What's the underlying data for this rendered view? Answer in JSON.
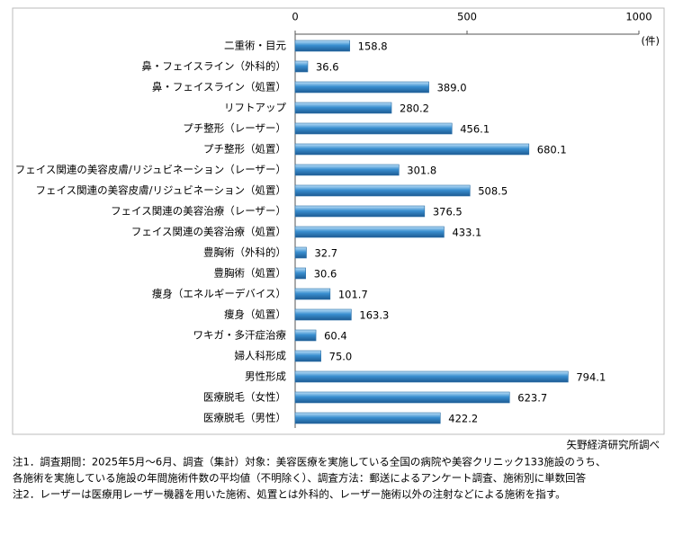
{
  "chart_data": {
    "type": "bar",
    "orientation": "horizontal",
    "categories": [
      "二重術・目元",
      "鼻・フェイスライン（外科的）",
      "鼻・フェイスライン（処置）",
      "リフトアップ",
      "プチ整形（レーザー）",
      "プチ整形（処置）",
      "フェイス関連の美容皮膚/リジュビネーション（レーザー）",
      "フェイス関連の美容皮膚/リジュビネーション（処置）",
      "フェイス関連の美容治療（レーザー）",
      "フェイス関連の美容治療（処置）",
      "豊胸術（外科的）",
      "豊胸術（処置）",
      "痩身（エネルギーデバイス）",
      "痩身（処置）",
      "ワキガ・多汗症治療",
      "婦人科形成",
      "男性形成",
      "医療脱毛（女性）",
      "医療脱毛（男性）"
    ],
    "values": [
      158.8,
      36.6,
      389.0,
      280.2,
      456.1,
      680.1,
      301.8,
      508.5,
      376.5,
      433.1,
      32.7,
      30.6,
      101.7,
      163.3,
      60.4,
      75.0,
      794.1,
      623.7,
      422.2
    ],
    "value_labels": [
      "158.8",
      "36.6",
      "389.0",
      "280.2",
      "456.1",
      "680.1",
      "301.8",
      "508.5",
      "376.5",
      "433.1",
      "32.7",
      "30.6",
      "101.7",
      "163.3",
      "60.4",
      "75.0",
      "794.1",
      "623.7",
      "422.2"
    ],
    "color": "#3a8fd0",
    "xlim": [
      0,
      1000
    ],
    "xticks": [
      0,
      500,
      1000
    ],
    "unit": "(件)",
    "source": "矢野経済研究所調べ",
    "notes": [
      "注1．調査期間：2025年5月～6月、調査（集計）対象：美容医療を実施している全国の病院や美容クリニック133施設のうち、",
      "各施術を実施している施設の年間施術件数の平均値（不明除く）、調査方法：郵送によるアンケート調査、施術別に単数回答",
      "注2．レーザーは医療用レーザー機器を用いた施術、処置とは外科的、レーザー施術以外の注射などによる施術を指す。"
    ]
  }
}
